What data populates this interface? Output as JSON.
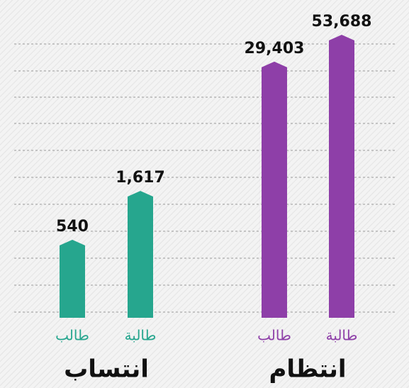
{
  "chart_data": {
    "type": "bar",
    "log_scale": true,
    "ylim": [
      100,
      60000
    ],
    "groups": [
      {
        "name": "انتساب",
        "color": "#26a68e",
        "categories": [
          "طالب",
          "طالبة"
        ],
        "values": [
          540,
          1617
        ],
        "value_labels": [
          "540",
          "1,617"
        ]
      },
      {
        "name": "انتظام",
        "color": "#8e3fa8",
        "categories": [
          "طالب",
          "طالبة"
        ],
        "values": [
          29403,
          53688
        ],
        "value_labels": [
          "29,403",
          "53,688"
        ]
      }
    ]
  }
}
